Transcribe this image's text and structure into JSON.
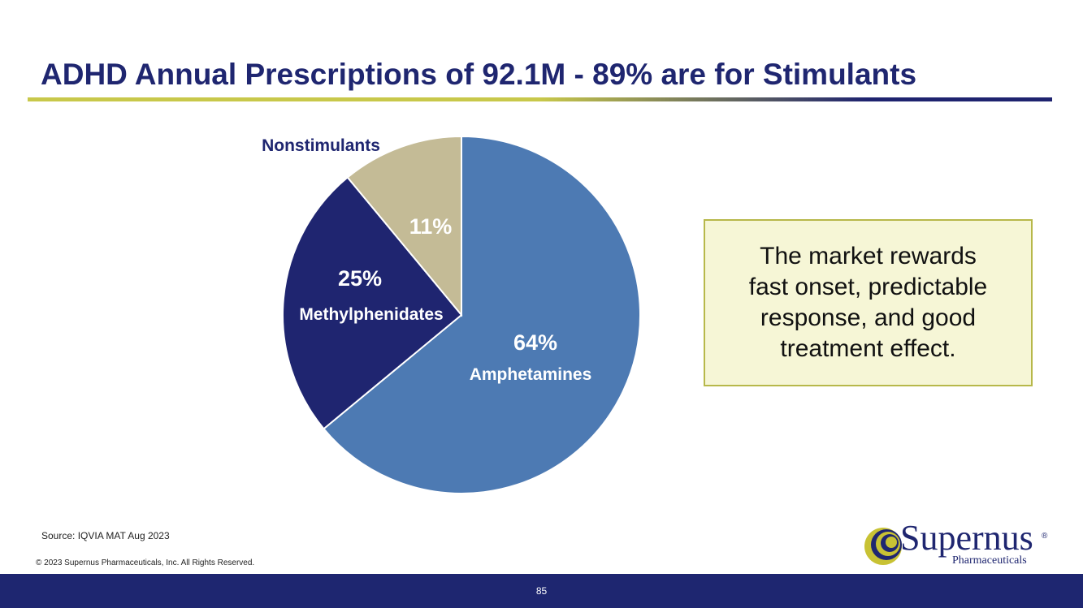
{
  "slide": {
    "title": "ADHD Annual Prescriptions of 92.1M - 89% are for Stimulants",
    "callout": "The market rewards fast onset, predictable response, and good treatment effect.",
    "source": "Source: IQVIA MAT Aug 2023",
    "copyright": "© 2023 Supernus Pharmaceuticals, Inc. All Rights Reserved.",
    "page_number": "85"
  },
  "logo": {
    "name": "Supernus",
    "registered_mark": "®",
    "subtitle": "Pharmaceuticals"
  },
  "colors": {
    "title": "#1f2670",
    "footer": "#1e2670",
    "amphetamines": "#4d7ab3",
    "methylphenidates": "#1f2570",
    "nonstimulants": "#c4bb96",
    "callout_bg": "#f6f6d6",
    "callout_border": "#b7b84a"
  },
  "chart_data": {
    "type": "pie",
    "title": "",
    "slices": [
      {
        "key": "amphetamines",
        "label": "Amphetamines",
        "value": 64,
        "display": "64%"
      },
      {
        "key": "methylphenidates",
        "label": "Methylphenidates",
        "value": 25,
        "display": "25%"
      },
      {
        "key": "nonstimulants",
        "label": "Nonstimulants",
        "value": 11,
        "display": "11%"
      }
    ]
  }
}
